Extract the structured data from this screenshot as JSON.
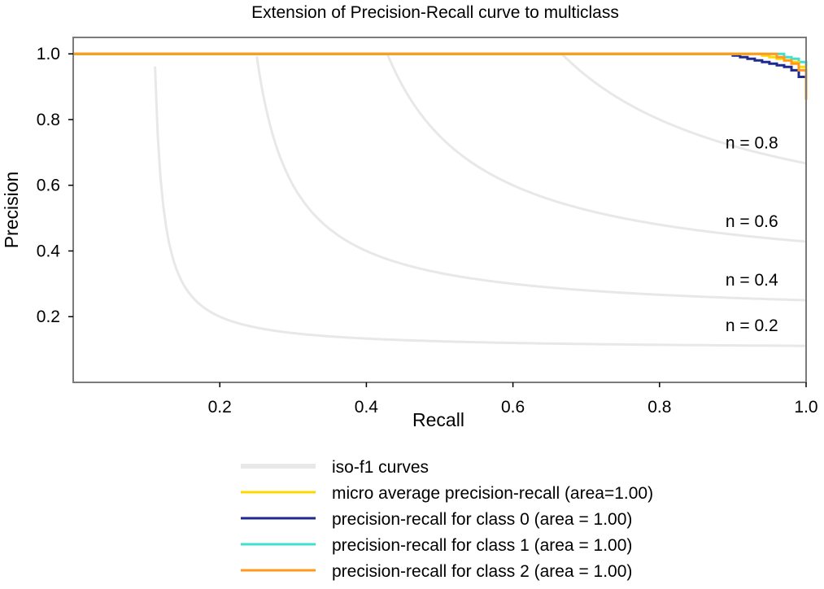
{
  "chart_data": {
    "type": "line",
    "title": "Extension of Precision-Recall curve to multiclass",
    "xlabel": "Recall",
    "ylabel": "Precision",
    "xlim": [
      0.0,
      1.0
    ],
    "ylim": [
      0.0,
      1.05
    ],
    "xticks": [
      0.2,
      0.4,
      0.6,
      0.8,
      1.0
    ],
    "xtick_labels": [
      "0.2",
      "0.4",
      "0.6",
      "0.8",
      "1.0"
    ],
    "yticks": [
      0.2,
      0.4,
      0.6,
      0.8,
      1.0
    ],
    "ytick_labels": [
      "0.2",
      "0.4",
      "0.6",
      "0.8",
      "1.0"
    ],
    "grid": false,
    "legend_position": "below",
    "iso_f1": {
      "values": [
        0.2,
        0.4,
        0.6,
        0.8
      ],
      "labels": [
        "n = 0.2",
        "n = 0.4",
        "n = 0.6",
        "n = 0.8"
      ],
      "color": "#e8e8e8"
    },
    "series": [
      {
        "name": "micro average precision-recall (area=1.00)",
        "color": "#ffd700",
        "x": [
          0.0,
          0.93,
          0.94,
          0.95,
          0.96,
          0.97,
          0.98,
          0.99,
          1.0
        ],
        "y": [
          1.0,
          1.0,
          0.995,
          0.99,
          0.985,
          0.98,
          0.975,
          0.96,
          0.94
        ]
      },
      {
        "name": "precision-recall for class 0 (area = 1.00)",
        "color": "#1f2a8f",
        "x": [
          0.0,
          0.9,
          0.91,
          0.92,
          0.93,
          0.94,
          0.95,
          0.96,
          0.97,
          0.98,
          0.99,
          1.0
        ],
        "y": [
          1.0,
          0.995,
          0.99,
          0.985,
          0.98,
          0.975,
          0.97,
          0.965,
          0.96,
          0.95,
          0.93,
          0.91
        ]
      },
      {
        "name": "precision-recall for class 1 (area = 1.00)",
        "color": "#40e0d0",
        "x": [
          0.0,
          0.96,
          0.97,
          0.98,
          0.99,
          1.0
        ],
        "y": [
          1.0,
          1.0,
          0.99,
          0.985,
          0.975,
          0.96
        ]
      },
      {
        "name": "precision-recall for class 2 (area = 1.00)",
        "color": "#ff9a1f",
        "x": [
          0.0,
          0.95,
          0.96,
          0.97,
          0.98,
          0.99,
          1.0,
          1.0
        ],
        "y": [
          1.0,
          1.0,
          0.99,
          0.98,
          0.97,
          0.95,
          0.93,
          0.86
        ]
      }
    ],
    "legend": [
      {
        "label": "iso-f1 curves",
        "color": "#e8e8e8"
      },
      {
        "label": "micro average precision-recall (area=1.00)",
        "color": "#ffd700"
      },
      {
        "label": "precision-recall for class 0 (area = 1.00)",
        "color": "#1f2a8f"
      },
      {
        "label": "precision-recall for class 1 (area = 1.00)",
        "color": "#40e0d0"
      },
      {
        "label": "precision-recall for class 2 (area = 1.00)",
        "color": "#ff9a1f"
      }
    ]
  }
}
